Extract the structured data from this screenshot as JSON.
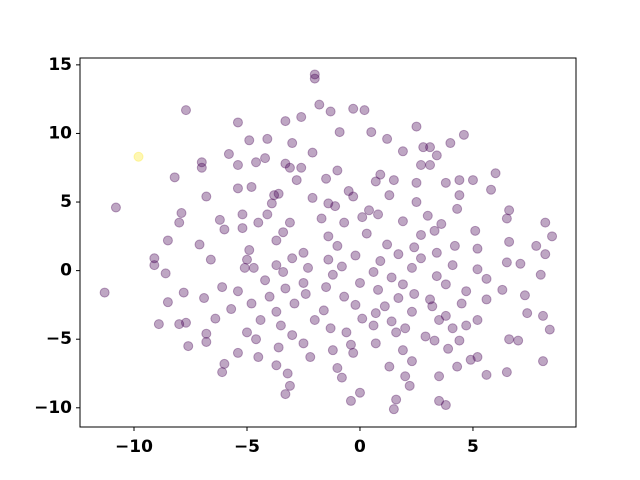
{
  "chart_data": {
    "type": "scatter",
    "xlim": [
      -12.39,
      9.56
    ],
    "ylim": [
      -11.4,
      15.5
    ],
    "xticks": [
      {
        "value": -10,
        "label": "−10"
      },
      {
        "value": -5,
        "label": "−5"
      },
      0,
      5
    ],
    "yticks": [
      {
        "value": -10,
        "label": "−10"
      },
      {
        "value": -5,
        "label": "−5"
      },
      0,
      5,
      10,
      15
    ],
    "grid": false,
    "series": [
      {
        "color": "#440154",
        "x": [
          -2.0,
          -2.0,
          -7.7,
          -10.8,
          -11.3,
          -5.4,
          -7.9,
          -7.6,
          -8.0,
          -9.1,
          -2.6,
          -3.9,
          -1.1,
          5.2,
          4.1,
          -3.3,
          -1.8,
          -1.3,
          -0.3,
          0.2,
          2.5,
          -3.3,
          -2.6,
          4.6,
          0.5,
          1.2,
          -0.9,
          4.0,
          2.8,
          3.1,
          -4.9,
          -4.1,
          -3.0,
          -2.1,
          1.9,
          3.4,
          -5.8,
          -4.2,
          -4.6,
          -7.0,
          -7.0,
          -3.3,
          -3.1,
          -1.0,
          0.9,
          1.5,
          2.7,
          3.1,
          3.8,
          4.4,
          5.0,
          6.0,
          -8.2,
          -5.4,
          -2.8,
          -1.5,
          0.7,
          2.5,
          -4.8,
          -5.4,
          -3.6,
          -2.1,
          -0.5,
          -0.3,
          1.3,
          2.5,
          4.4,
          5.8,
          -6.8,
          -3.8,
          -1.4,
          0.4,
          -4.1,
          0.8,
          3.0,
          4.3,
          6.6,
          -8.0,
          -6.2,
          -5.2,
          -4.5,
          -3.1,
          -1.7,
          -0.7,
          0.1,
          1.9,
          3.6,
          5.1,
          6.5,
          8.2,
          -6.0,
          -5.2,
          -3.4,
          -1.4,
          0.3,
          2.7,
          3.3,
          6.6,
          8.5,
          -8.5,
          -3.7,
          -1.0,
          1.2,
          2.4,
          4.2,
          7.8,
          -7.1,
          -4.9,
          -2.5,
          -0.2,
          1.7,
          3.4,
          -6.6,
          -5.0,
          -3.0,
          -1.4,
          0.9,
          2.7,
          4.1,
          6.5,
          8.2,
          -9.1,
          -5.1,
          -3.7,
          -2.3,
          -0.8,
          0.6,
          2.3,
          5.2,
          7.1,
          -4.7,
          -3.4,
          -1.2,
          1.4,
          3.4,
          5.6,
          8.0,
          -8.6,
          -4.2,
          -2.5,
          0.0,
          1.9,
          3.8,
          -6.1,
          -3.3,
          -1.5,
          0.8,
          2.4,
          4.7,
          6.3,
          -7.8,
          -5.4,
          -4.0,
          -2.4,
          -0.7,
          1.7,
          3.1,
          5.6,
          7.3,
          -8.5,
          -6.9,
          -4.8,
          -2.9,
          -0.2,
          1.1,
          3.2,
          4.5,
          -5.7,
          -3.7,
          -1.6,
          0.7,
          2.3,
          3.8,
          7.4,
          -6.4,
          -4.4,
          -2.0,
          0.1,
          1.4,
          3.5,
          5.2,
          8.1,
          -7.7,
          -3.5,
          -1.3,
          0.6,
          2.0,
          4.7,
          -8.9,
          -6.8,
          -5.0,
          -3.0,
          -0.6,
          1.6,
          2.9,
          8.4,
          -4.6,
          -2.5,
          -0.4,
          0.7,
          3.3,
          4.4,
          6.6,
          7.0,
          -6.8,
          -3.6,
          -1.2,
          1.9,
          3.9,
          -5.4,
          -4.5,
          -2.2,
          -0.3,
          2.3,
          4.9,
          5.2,
          -6.0,
          -3.7,
          -1.0,
          1.3,
          4.3,
          6.5,
          8.1,
          -6.1,
          -3.2,
          -0.8,
          2.0,
          3.5,
          5.6,
          -3.1,
          2.2,
          0.0,
          -0.4,
          1.6,
          3.5,
          3.8,
          1.5
        ],
        "y": [
          14.3,
          14.0,
          11.7,
          4.6,
          -1.6,
          10.8,
          4.2,
          -5.5,
          -3.9,
          0.4,
          7.5,
          4.9,
          4.7,
          1.6,
          -4.2,
          -9.0,
          12.1,
          11.6,
          11.8,
          11.7,
          10.5,
          10.9,
          11.2,
          9.9,
          10.1,
          9.6,
          10.1,
          9.3,
          9.0,
          9.0,
          9.5,
          9.6,
          9.3,
          8.6,
          8.7,
          8.4,
          8.5,
          8.2,
          7.9,
          7.9,
          7.5,
          7.8,
          7.5,
          7.3,
          7.0,
          6.6,
          7.7,
          7.7,
          6.4,
          6.6,
          6.6,
          7.1,
          6.8,
          7.7,
          6.6,
          6.7,
          6.5,
          6.4,
          6.1,
          6.0,
          5.6,
          5.3,
          5.8,
          5.4,
          5.5,
          5.0,
          5.5,
          5.9,
          5.4,
          5.5,
          4.9,
          4.4,
          4.1,
          4.1,
          4.0,
          4.5,
          4.4,
          3.5,
          3.7,
          4.1,
          3.5,
          3.5,
          3.8,
          3.5,
          3.9,
          3.6,
          3.4,
          2.9,
          3.8,
          3.5,
          3.0,
          3.1,
          2.8,
          2.5,
          2.7,
          2.6,
          2.9,
          2.1,
          2.5,
          2.2,
          2.2,
          1.8,
          1.9,
          1.7,
          1.8,
          1.8,
          1.9,
          1.5,
          1.3,
          1.1,
          1.2,
          1.3,
          0.8,
          0.8,
          0.9,
          0.8,
          0.7,
          0.9,
          0.4,
          0.6,
          1.2,
          0.9,
          0.2,
          0.4,
          0.2,
          0.3,
          -0.1,
          0.2,
          0.1,
          0.5,
          0.2,
          -0.1,
          -0.3,
          -0.5,
          -0.4,
          -0.6,
          -0.3,
          -0.2,
          -0.7,
          -0.9,
          -0.9,
          -1.0,
          -1.0,
          -1.2,
          -1.3,
          -1.2,
          -1.4,
          -1.7,
          -1.5,
          -1.4,
          -1.6,
          -1.5,
          -1.9,
          -1.7,
          -1.9,
          -2.0,
          -2.1,
          -2.1,
          -1.8,
          -2.3,
          -2.0,
          -2.4,
          -2.4,
          -2.5,
          -2.6,
          -2.6,
          -2.4,
          -2.8,
          -3.0,
          -2.9,
          -3.1,
          -3.0,
          -3.3,
          -3.1,
          -3.5,
          -3.6,
          -3.6,
          -3.5,
          -3.7,
          -3.6,
          -3.6,
          -3.3,
          -3.8,
          -4.0,
          -4.2,
          -4.0,
          -4.2,
          -4.0,
          -3.9,
          -4.6,
          -4.5,
          -4.7,
          -4.5,
          -4.5,
          -4.8,
          -4.3,
          -5.0,
          -5.3,
          -5.4,
          -5.3,
          -5.1,
          -5.1,
          -5.0,
          -5.1,
          -5.2,
          -5.6,
          -5.8,
          -5.8,
          -5.7,
          -6.0,
          -6.3,
          -6.3,
          -6.0,
          -6.6,
          -6.5,
          -6.3,
          -6.8,
          -6.9,
          -7.1,
          -7.0,
          -7.0,
          -7.4,
          -6.6,
          -7.4,
          -7.5,
          -7.8,
          -7.7,
          -7.7,
          -7.6,
          -8.4,
          -8.4,
          -8.9,
          -9.5,
          -9.4,
          -9.5,
          -9.8,
          -10.1
        ]
      },
      {
        "color": "#fde725",
        "x": [
          -9.8
        ],
        "y": [
          8.3
        ]
      }
    ]
  }
}
